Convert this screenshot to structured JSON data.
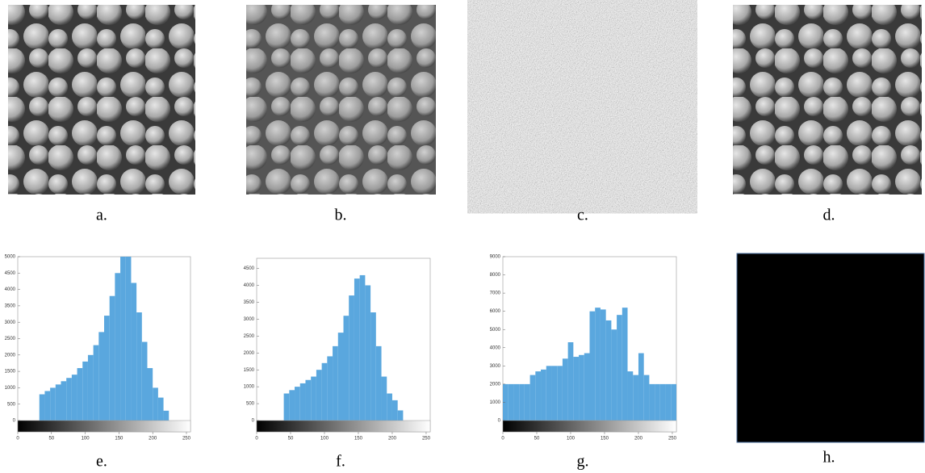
{
  "panel_labels": [
    "a.",
    "b.",
    "c.",
    "d.",
    "e.",
    "f.",
    "g.",
    "h."
  ],
  "chart_data": [
    {
      "type": "histogram",
      "color": "#5aa7de",
      "bins": [
        0,
        8,
        16,
        24,
        32,
        40,
        48,
        56,
        64,
        72,
        80,
        88,
        96,
        104,
        112,
        120,
        128,
        136,
        144,
        152,
        160,
        168,
        176,
        184,
        192,
        200,
        208,
        216,
        224,
        232,
        240,
        248,
        256
      ],
      "values": [
        0,
        0,
        0,
        0,
        800,
        900,
        1000,
        1100,
        1200,
        1300,
        1400,
        1600,
        1800,
        2000,
        2300,
        2700,
        3200,
        3800,
        4500,
        5000,
        5000,
        4200,
        3300,
        2400,
        1600,
        1000,
        700,
        300,
        0,
        0,
        0,
        0
      ],
      "xlim": [
        0,
        256
      ],
      "xticks": [
        0,
        50,
        100,
        150,
        200,
        250
      ],
      "ylim": [
        0,
        5000
      ],
      "yticks": [
        0,
        500,
        1000,
        1500,
        2000,
        2500,
        3000,
        3500,
        4000,
        4500,
        5000
      ]
    },
    {
      "type": "histogram",
      "color": "#5aa7de",
      "bins": [
        0,
        8,
        16,
        24,
        32,
        40,
        48,
        56,
        64,
        72,
        80,
        88,
        96,
        104,
        112,
        120,
        128,
        136,
        144,
        152,
        160,
        168,
        176,
        184,
        192,
        200,
        208,
        216,
        224,
        232,
        240,
        248,
        256
      ],
      "values": [
        0,
        0,
        0,
        0,
        0,
        800,
        900,
        1000,
        1100,
        1200,
        1300,
        1500,
        1700,
        1900,
        2200,
        2600,
        3100,
        3700,
        4200,
        4300,
        4000,
        3200,
        2200,
        1300,
        800,
        600,
        300,
        0,
        0,
        0,
        0,
        0
      ],
      "xlim": [
        0,
        256
      ],
      "xticks": [
        0,
        50,
        100,
        150,
        200,
        250
      ],
      "ylim": [
        0,
        4800
      ],
      "yticks": [
        0,
        500,
        1000,
        1500,
        2000,
        2500,
        3000,
        3500,
        4000,
        4500
      ]
    },
    {
      "type": "histogram",
      "color": "#5aa7de",
      "bins": [
        0,
        8,
        16,
        24,
        32,
        40,
        48,
        56,
        64,
        72,
        80,
        88,
        96,
        104,
        112,
        120,
        128,
        136,
        144,
        152,
        160,
        168,
        176,
        184,
        192,
        200,
        208,
        216,
        224,
        232,
        240,
        248,
        256
      ],
      "values": [
        2000,
        2000,
        2000,
        2000,
        2000,
        2500,
        2700,
        2800,
        3000,
        3000,
        3000,
        3400,
        4300,
        3500,
        3600,
        3700,
        6000,
        6200,
        6100,
        5500,
        5000,
        5800,
        6200,
        2700,
        2500,
        3700,
        2500,
        2000,
        2000,
        2000,
        2000,
        2000
      ],
      "xlim": [
        0,
        256
      ],
      "xticks": [
        0,
        50,
        100,
        150,
        200,
        250
      ],
      "ylim": [
        0,
        9000
      ],
      "yticks": [
        0,
        1000,
        2000,
        3000,
        4000,
        5000,
        6000,
        7000,
        8000,
        9000
      ]
    }
  ]
}
